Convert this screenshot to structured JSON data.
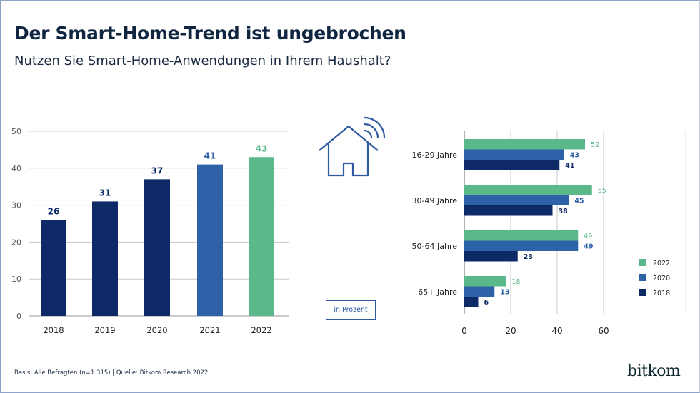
{
  "header": {
    "title": "Der Smart-Home-Trend ist ungebrochen",
    "subtitle": "Nutzen Sie Smart-Home-Anwendungen in Ihrem Haushalt?"
  },
  "badge": "in Prozent",
  "footer": "Basis: Alle Befragten (n=1.315) | Quelle: Bitkom Research 2022",
  "logo": "bitkom",
  "icon": "smart-home-wifi-icon",
  "colors": {
    "green": "#5ab88a",
    "blue": "#2d62a8",
    "navy": "#0e2a66"
  },
  "chart_data": [
    {
      "type": "bar",
      "categories": [
        "2018",
        "2019",
        "2020",
        "2021",
        "2022"
      ],
      "values": [
        26,
        31,
        37,
        41,
        43
      ],
      "bar_colors": [
        "#0e2a66",
        "#0e2a66",
        "#0e2a66",
        "#2d62a8",
        "#5ab88a"
      ],
      "ylim": [
        0,
        50
      ],
      "yticks": [
        0,
        10,
        20,
        30,
        40,
        50
      ],
      "grid": true,
      "data_labels": true
    },
    {
      "type": "bar",
      "orientation": "horizontal",
      "categories": [
        "16-29 Jahre",
        "30-49 Jahre",
        "50-64 Jahre",
        "65+ Jahre"
      ],
      "series": [
        {
          "name": "2022",
          "values": [
            52,
            55,
            49,
            18
          ],
          "color": "#5ab88a"
        },
        {
          "name": "2020",
          "values": [
            43,
            45,
            49,
            13
          ],
          "color": "#2d62a8"
        },
        {
          "name": "2018",
          "values": [
            41,
            38,
            23,
            6
          ],
          "color": "#0e2a66"
        }
      ],
      "xlim": [
        0,
        60
      ],
      "xticks": [
        0,
        20,
        40,
        60
      ],
      "grid": true,
      "legend": "bottom-right",
      "data_labels": true
    }
  ]
}
